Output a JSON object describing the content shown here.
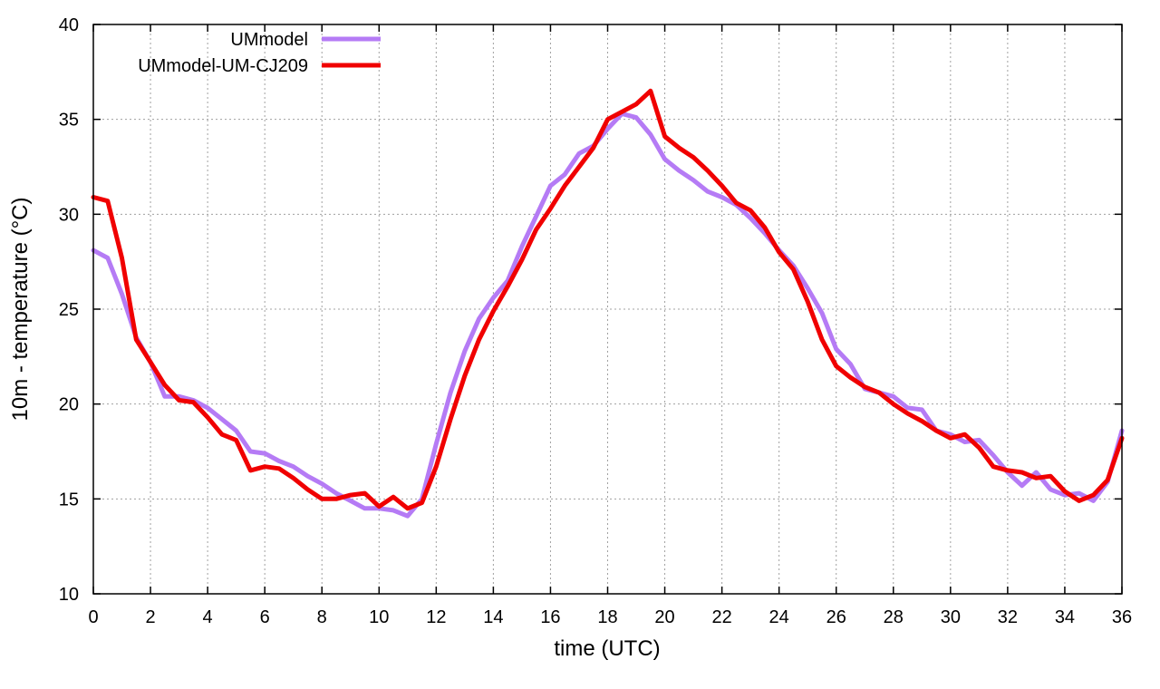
{
  "chart_data": {
    "type": "line",
    "xlabel": "time (UTC)",
    "ylabel": "10m - temperature (°C)",
    "xlim": [
      0,
      36
    ],
    "ylim": [
      10,
      40
    ],
    "xticks": [
      0,
      2,
      4,
      6,
      8,
      10,
      12,
      14,
      16,
      18,
      20,
      22,
      24,
      26,
      28,
      30,
      32,
      34,
      36
    ],
    "yticks": [
      10,
      15,
      20,
      25,
      30,
      35,
      40
    ],
    "grid": true,
    "legend_position": "top-left",
    "series": [
      {
        "name": "UMmodel",
        "color": "#b57bf5",
        "x": [
          0,
          0.5,
          1,
          1.5,
          2,
          2.5,
          3,
          3.5,
          4,
          4.5,
          5,
          5.5,
          6,
          6.5,
          7,
          7.5,
          8,
          8.5,
          9,
          9.5,
          10,
          10.5,
          11,
          11.5,
          12,
          12.5,
          13,
          13.5,
          14,
          14.5,
          15,
          15.5,
          16,
          16.5,
          17,
          17.5,
          18,
          18.5,
          19,
          19.5,
          20,
          20.5,
          21,
          21.5,
          22,
          22.5,
          23,
          23.5,
          24,
          24.5,
          25,
          25.5,
          26,
          26.5,
          27,
          27.5,
          28,
          28.5,
          29,
          29.5,
          30,
          30.5,
          31,
          31.5,
          32,
          32.5,
          33,
          33.5,
          34,
          34.5,
          35,
          35.5,
          36
        ],
        "y": [
          28.1,
          27.7,
          25.8,
          23.5,
          22.2,
          20.4,
          20.4,
          20.2,
          19.8,
          19.2,
          18.6,
          17.5,
          17.4,
          17.0,
          16.7,
          16.2,
          15.8,
          15.3,
          14.9,
          14.5,
          14.5,
          14.4,
          14.1,
          15.0,
          17.9,
          20.6,
          22.8,
          24.5,
          25.6,
          26.5,
          28.3,
          29.9,
          31.5,
          32.1,
          33.2,
          33.6,
          34.5,
          35.3,
          35.1,
          34.2,
          32.9,
          32.3,
          31.8,
          31.2,
          30.9,
          30.5,
          29.8,
          29.0,
          28.1,
          27.3,
          26.1,
          24.8,
          22.9,
          22.1,
          20.8,
          20.6,
          20.4,
          19.8,
          19.7,
          18.6,
          18.4,
          18.0,
          18.1,
          17.3,
          16.4,
          15.7,
          16.4,
          15.5,
          15.2,
          15.3,
          14.9,
          15.9,
          18.6
        ]
      },
      {
        "name": "UMmodel-UM-CJ209",
        "color": "#f00000",
        "x": [
          0,
          0.5,
          1,
          1.5,
          2,
          2.5,
          3,
          3.5,
          4,
          4.5,
          5,
          5.5,
          6,
          6.5,
          7,
          7.5,
          8,
          8.5,
          9,
          9.5,
          10,
          10.5,
          11,
          11.5,
          12,
          12.5,
          13,
          13.5,
          14,
          14.5,
          15,
          15.5,
          16,
          16.5,
          17,
          17.5,
          18,
          18.5,
          19,
          19.5,
          20,
          20.5,
          21,
          21.5,
          22,
          22.5,
          23,
          23.5,
          24,
          24.5,
          25,
          25.5,
          26,
          26.5,
          27,
          27.5,
          28,
          28.5,
          29,
          29.5,
          30,
          30.5,
          31,
          31.5,
          32,
          32.5,
          33,
          33.5,
          34,
          34.5,
          35,
          35.5,
          36
        ],
        "y": [
          30.9,
          30.7,
          27.7,
          23.4,
          22.2,
          21.0,
          20.2,
          20.1,
          19.3,
          18.4,
          18.1,
          16.5,
          16.7,
          16.6,
          16.1,
          15.5,
          15.0,
          15.0,
          15.2,
          15.3,
          14.6,
          15.1,
          14.5,
          14.8,
          16.7,
          19.2,
          21.5,
          23.4,
          24.9,
          26.2,
          27.6,
          29.2,
          30.3,
          31.5,
          32.5,
          33.5,
          35.0,
          35.4,
          35.8,
          36.5,
          34.1,
          33.5,
          33.0,
          32.3,
          31.5,
          30.6,
          30.2,
          29.3,
          28.0,
          27.1,
          25.4,
          23.4,
          22.0,
          21.4,
          20.9,
          20.6,
          20.0,
          19.5,
          19.1,
          18.6,
          18.2,
          18.4,
          17.7,
          16.7,
          16.5,
          16.4,
          16.1,
          16.2,
          15.4,
          14.9,
          15.2,
          16.0,
          18.2
        ]
      }
    ]
  }
}
